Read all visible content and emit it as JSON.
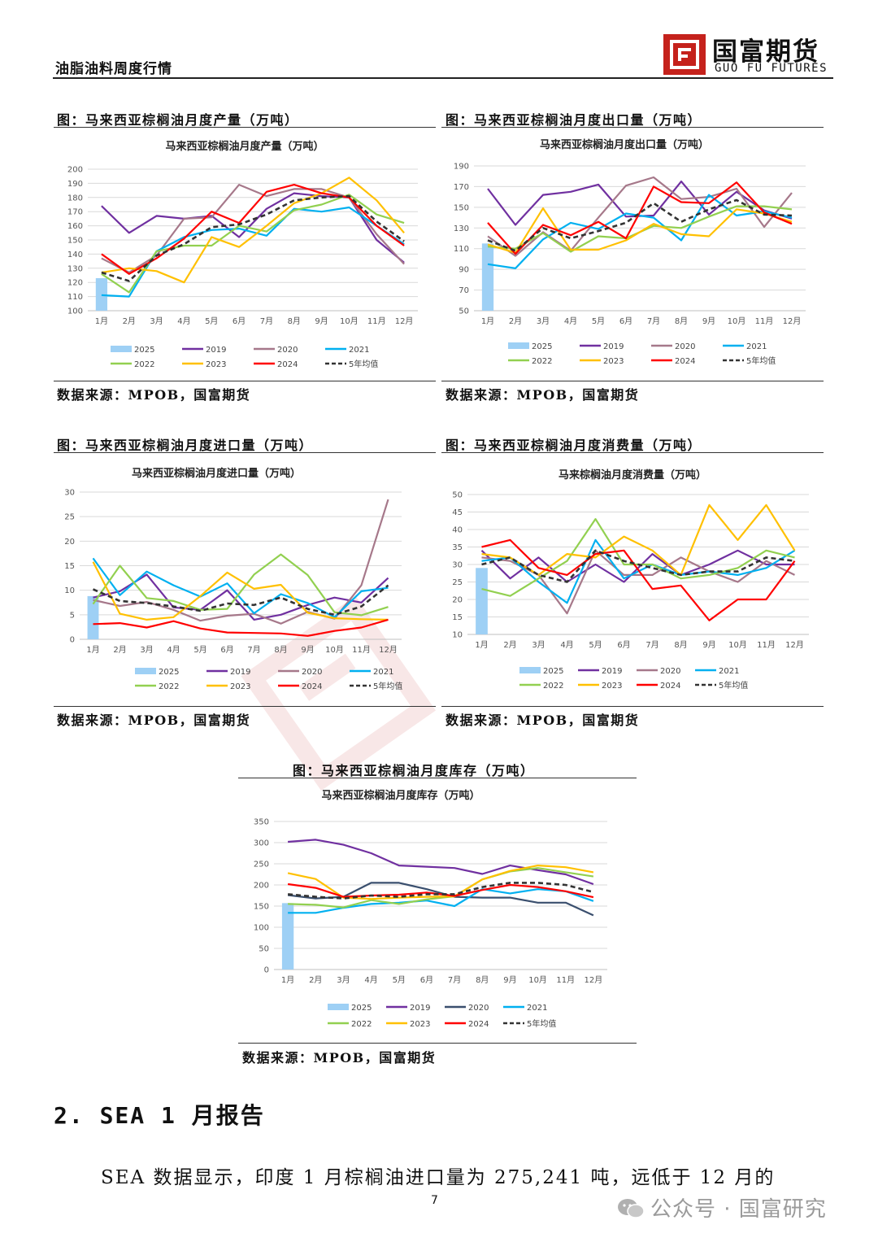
{
  "header": {
    "doc_title": "油脂油料周度行情",
    "logo_cn": "国富期货",
    "logo_en": "GUO  FU  FUTURES"
  },
  "colors": {
    "2025": "#9ed0f5",
    "2019": "#7030a0",
    "2020": "#a6788a",
    "2021": "#00b0f0",
    "2022": "#92d050",
    "2023": "#ffc000",
    "2024": "#ff0000",
    "avg": "#333333",
    "inv2020": "#3a4f6e",
    "logo": "#c5221c"
  },
  "legend_labels": [
    "2025",
    "2019",
    "2020",
    "2021",
    "2022",
    "2023",
    "2024",
    "5年均值"
  ],
  "figures": [
    {
      "caption": "图：马来西亚棕榈油月度产量（万吨）",
      "source": "数据来源：MPOB，国富期货"
    },
    {
      "caption": "图：马来西亚棕榈油月度出口量（万吨）",
      "source": "数据来源：MPOB，国富期货"
    },
    {
      "caption": "图：马来西亚棕榈油月度进口量（万吨）",
      "source": "数据来源：MPOB，国富期货"
    },
    {
      "caption": "图：马来西亚棕榈油月度消费量（万吨）",
      "source": "数据来源：MPOB，国富期货"
    },
    {
      "caption": "图：马来西亚棕榈油月度库存（万吨）",
      "source": "数据来源：MPOB，国富期货"
    }
  ],
  "chart_data": [
    {
      "type": "line",
      "title": "马来西亚棕榈油月度产量（万吨）",
      "categories": [
        "1月",
        "2月",
        "3月",
        "4月",
        "5月",
        "6月",
        "7月",
        "8月",
        "9月",
        "10月",
        "11月",
        "12月"
      ],
      "ylim": [
        100,
        200
      ],
      "yticks": [
        100,
        110,
        120,
        130,
        140,
        150,
        160,
        170,
        180,
        190,
        200
      ],
      "bar": {
        "name": "2025",
        "values": [
          123
        ]
      },
      "series": [
        {
          "name": "2019",
          "values": [
            174,
            155,
            167,
            165,
            167,
            152,
            172,
            183,
            181,
            180,
            150,
            134
          ]
        },
        {
          "name": "2020",
          "values": [
            137,
            127,
            139,
            165,
            166,
            189,
            181,
            186,
            186,
            180,
            154,
            133
          ]
        },
        {
          "name": "2021",
          "values": [
            111,
            110,
            142,
            152,
            157,
            158,
            153,
            172,
            170,
            173,
            160,
            147
          ]
        },
        {
          "name": "2022",
          "values": [
            126,
            113,
            142,
            146,
            146,
            160,
            156,
            171,
            175,
            182,
            168,
            162
          ]
        },
        {
          "name": "2023",
          "values": [
            127,
            130,
            128,
            120,
            152,
            145,
            160,
            176,
            183,
            194,
            178,
            155
          ]
        },
        {
          "name": "2024",
          "values": [
            140,
            126,
            137,
            151,
            170,
            162,
            184,
            189,
            183,
            180,
            160,
            146
          ]
        },
        {
          "name": "5年均值",
          "values": [
            127,
            121,
            139,
            147,
            159,
            161,
            168,
            178,
            180,
            181,
            163,
            149
          ]
        }
      ]
    },
    {
      "type": "line",
      "title": "马来西亚棕榈油月度出口量（万吨）",
      "categories": [
        "1月",
        "2月",
        "3月",
        "4月",
        "5月",
        "6月",
        "7月",
        "8月",
        "9月",
        "10月",
        "11月",
        "12月"
      ],
      "ylim": [
        50,
        190
      ],
      "yticks": [
        50,
        70,
        90,
        110,
        130,
        150,
        170,
        190
      ],
      "bar": {
        "name": "2025",
        "values": [
          115
        ]
      },
      "series": [
        {
          "name": "2019",
          "values": [
            168,
            133,
            162,
            165,
            172,
            141,
            142,
            175,
            143,
            165,
            147,
            139
          ]
        },
        {
          "name": "2020",
          "values": [
            122,
            103,
            126,
            108,
            140,
            171,
            179,
            158,
            160,
            168,
            131,
            164
          ]
        },
        {
          "name": "2021",
          "values": [
            95,
            91,
            119,
            135,
            129,
            144,
            140,
            118,
            162,
            142,
            146,
            140
          ]
        },
        {
          "name": "2022",
          "values": [
            112,
            110,
            125,
            107,
            122,
            120,
            132,
            130,
            141,
            151,
            151,
            148
          ]
        },
        {
          "name": "2023",
          "values": [
            114,
            106,
            149,
            109,
            109,
            118,
            134,
            124,
            122,
            148,
            144,
            136
          ]
        },
        {
          "name": "2024",
          "values": [
            135,
            105,
            133,
            123,
            136,
            120,
            170,
            155,
            154,
            174,
            145,
            134
          ]
        },
        {
          "name": "5年均值",
          "values": [
            118,
            108,
            130,
            120,
            127,
            135,
            154,
            136,
            148,
            157,
            143,
            142
          ]
        }
      ]
    },
    {
      "type": "line",
      "title": "马来西亚棕榈油月度进口量（万吨）",
      "categories": [
        "1月",
        "2月",
        "3月",
        "4月",
        "5月",
        "6月",
        "7月",
        "8月",
        "9月",
        "10月",
        "11月",
        "12月"
      ],
      "ylim": [
        0,
        30
      ],
      "yticks": [
        0,
        5,
        10,
        15,
        20,
        25,
        30
      ],
      "bar": {
        "name": "2025",
        "values": [
          8.8
        ]
      },
      "series": [
        {
          "name": "2019",
          "values": [
            8.5,
            9.8,
            13.2,
            6.5,
            6.0,
            10.0,
            4.0,
            5.0,
            7.0,
            8.5,
            7.5,
            12.5
          ]
        },
        {
          "name": "2020",
          "values": [
            8.0,
            6.8,
            7.6,
            6.0,
            3.8,
            4.8,
            5.2,
            3.2,
            5.6,
            4.2,
            11.0,
            28.5
          ]
        },
        {
          "name": "2021",
          "values": [
            16.5,
            9.0,
            13.8,
            11.0,
            8.7,
            11.4,
            5.3,
            9.2,
            7.4,
            4.5,
            9.8,
            10.5
          ]
        },
        {
          "name": "2022",
          "values": [
            7.2,
            15.0,
            8.4,
            7.8,
            6.0,
            6.2,
            13.2,
            17.3,
            13.1,
            5.5,
            4.9,
            6.6
          ]
        },
        {
          "name": "2023",
          "values": [
            15.8,
            5.2,
            4.0,
            4.5,
            8.8,
            13.6,
            10.3,
            11.1,
            5.4,
            4.3,
            4.1,
            4.0
          ]
        },
        {
          "name": "2024",
          "values": [
            3.1,
            3.3,
            2.4,
            3.7,
            2.2,
            1.4,
            1.3,
            1.2,
            0.7,
            1.7,
            2.4,
            4.0
          ]
        },
        {
          "name": "5年均值",
          "values": [
            10.2,
            7.8,
            7.4,
            6.7,
            5.8,
            7.3,
            7.0,
            8.5,
            6.2,
            5.0,
            6.7,
            11.0
          ]
        }
      ]
    },
    {
      "type": "line",
      "title": "马来棕榈油月度消费量（万吨）",
      "categories": [
        "1月",
        "2月",
        "3月",
        "4月",
        "5月",
        "6月",
        "7月",
        "8月",
        "9月",
        "10月",
        "11月",
        "12月"
      ],
      "ylim": [
        10,
        50
      ],
      "yticks": [
        10,
        15,
        20,
        25,
        30,
        35,
        40,
        45,
        50
      ],
      "bar": {
        "name": "2025",
        "values": [
          29
        ]
      },
      "series": [
        {
          "name": "2019",
          "values": [
            34,
            26,
            32,
            25,
            30,
            25,
            33,
            27,
            30,
            34,
            30,
            30
          ]
        },
        {
          "name": "2020",
          "values": [
            32,
            31,
            27,
            16,
            34,
            27,
            27,
            32,
            28,
            25,
            31,
            27
          ]
        },
        {
          "name": "2021",
          "values": [
            31,
            32,
            25,
            19,
            37,
            26,
            30,
            27,
            28,
            27,
            29,
            34
          ]
        },
        {
          "name": "2022",
          "values": [
            23,
            21,
            26,
            31,
            43,
            30,
            30,
            26,
            27,
            29,
            34,
            32
          ]
        },
        {
          "name": "2023",
          "values": [
            33,
            32,
            27,
            33,
            32,
            38,
            34,
            27,
            47,
            37,
            47,
            34
          ]
        },
        {
          "name": "2024",
          "values": [
            35,
            37,
            29,
            27,
            33,
            34,
            23,
            24,
            14,
            20,
            20,
            31
          ]
        },
        {
          "name": "5年均值",
          "values": [
            30,
            32,
            27,
            25,
            34,
            31,
            29,
            27,
            28,
            28,
            32,
            31
          ]
        }
      ]
    },
    {
      "type": "line",
      "title": "马来西亚棕榈油月度库存（万吨）",
      "categories": [
        "1月",
        "2月",
        "3月",
        "4月",
        "5月",
        "6月",
        "7月",
        "8月",
        "9月",
        "10月",
        "11月",
        "12月"
      ],
      "ylim": [
        0,
        350
      ],
      "yticks": [
        0,
        50,
        100,
        150,
        200,
        250,
        300,
        350
      ],
      "bar": {
        "name": "2025",
        "values": [
          157
        ]
      },
      "series": [
        {
          "name": "2019",
          "values": [
            302,
            307,
            295,
            275,
            246,
            243,
            240,
            226,
            246,
            235,
            225,
            202
          ]
        },
        {
          "name": "2020",
          "values": [
            176,
            168,
            172,
            205,
            205,
            190,
            172,
            170,
            170,
            158,
            158,
            128
          ]
        },
        {
          "name": "2021",
          "values": [
            134,
            134,
            146,
            155,
            158,
            163,
            150,
            190,
            180,
            190,
            185,
            162
          ]
        },
        {
          "name": "2022",
          "values": [
            155,
            153,
            147,
            164,
            155,
            166,
            173,
            213,
            232,
            240,
            230,
            220
          ]
        },
        {
          "name": "2023",
          "values": [
            228,
            214,
            170,
            167,
            170,
            172,
            173,
            213,
            233,
            246,
            242,
            230
          ]
        },
        {
          "name": "2024",
          "values": [
            202,
            193,
            172,
            175,
            177,
            182,
            174,
            188,
            200,
            195,
            185,
            171
          ]
        },
        {
          "name": "5年均值",
          "values": [
            178,
            172,
            168,
            175,
            172,
            178,
            178,
            195,
            205,
            205,
            200,
            183
          ]
        }
      ]
    }
  ],
  "section": {
    "title": "2. SEA 1 月报告"
  },
  "body": {
    "text": "SEA 数据显示，印度 1 月棕榈油进口量为 275,241 吨，远低于 12 月的"
  },
  "footer": {
    "page_number": "7",
    "wechat": "公众号 · 国富研究"
  }
}
